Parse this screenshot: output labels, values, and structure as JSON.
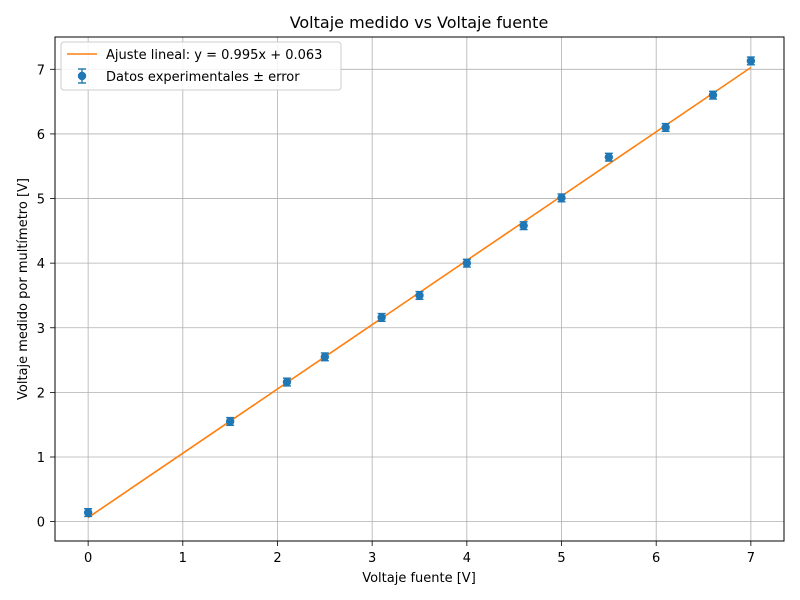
{
  "chart_data": {
    "type": "scatter",
    "title": "Voltaje medido vs Voltaje fuente",
    "xlabel": "Voltaje fuente [V]",
    "ylabel": "Voltaje medido por multímetro [V]",
    "xlim": [
      -0.35,
      7.35
    ],
    "ylim": [
      -0.3,
      7.5
    ],
    "xticks": [
      0,
      1,
      2,
      3,
      4,
      5,
      6,
      7
    ],
    "yticks": [
      0,
      1,
      2,
      3,
      4,
      5,
      6,
      7
    ],
    "grid": true,
    "legend_position": "top-left",
    "series": [
      {
        "name": "Datos experimentales ± error",
        "kind": "errorbar",
        "color": "#1f77b4",
        "x": [
          0,
          1.5,
          2.1,
          2.5,
          3.1,
          3.5,
          4.0,
          4.6,
          5.0,
          5.5,
          6.1,
          6.6,
          7.0
        ],
        "y": [
          0.14,
          1.55,
          2.16,
          2.55,
          3.16,
          3.5,
          4.0,
          4.58,
          5.01,
          5.64,
          6.1,
          6.6,
          7.13
        ],
        "yerr": [
          0.06,
          0.06,
          0.06,
          0.06,
          0.06,
          0.06,
          0.06,
          0.06,
          0.06,
          0.06,
          0.06,
          0.06,
          0.06
        ]
      },
      {
        "name": "Ajuste lineal: y = 0.995x + 0.063",
        "kind": "line",
        "color": "#ff7f0e",
        "slope": 0.995,
        "intercept": 0.063,
        "x_range": [
          0,
          7
        ]
      }
    ]
  }
}
